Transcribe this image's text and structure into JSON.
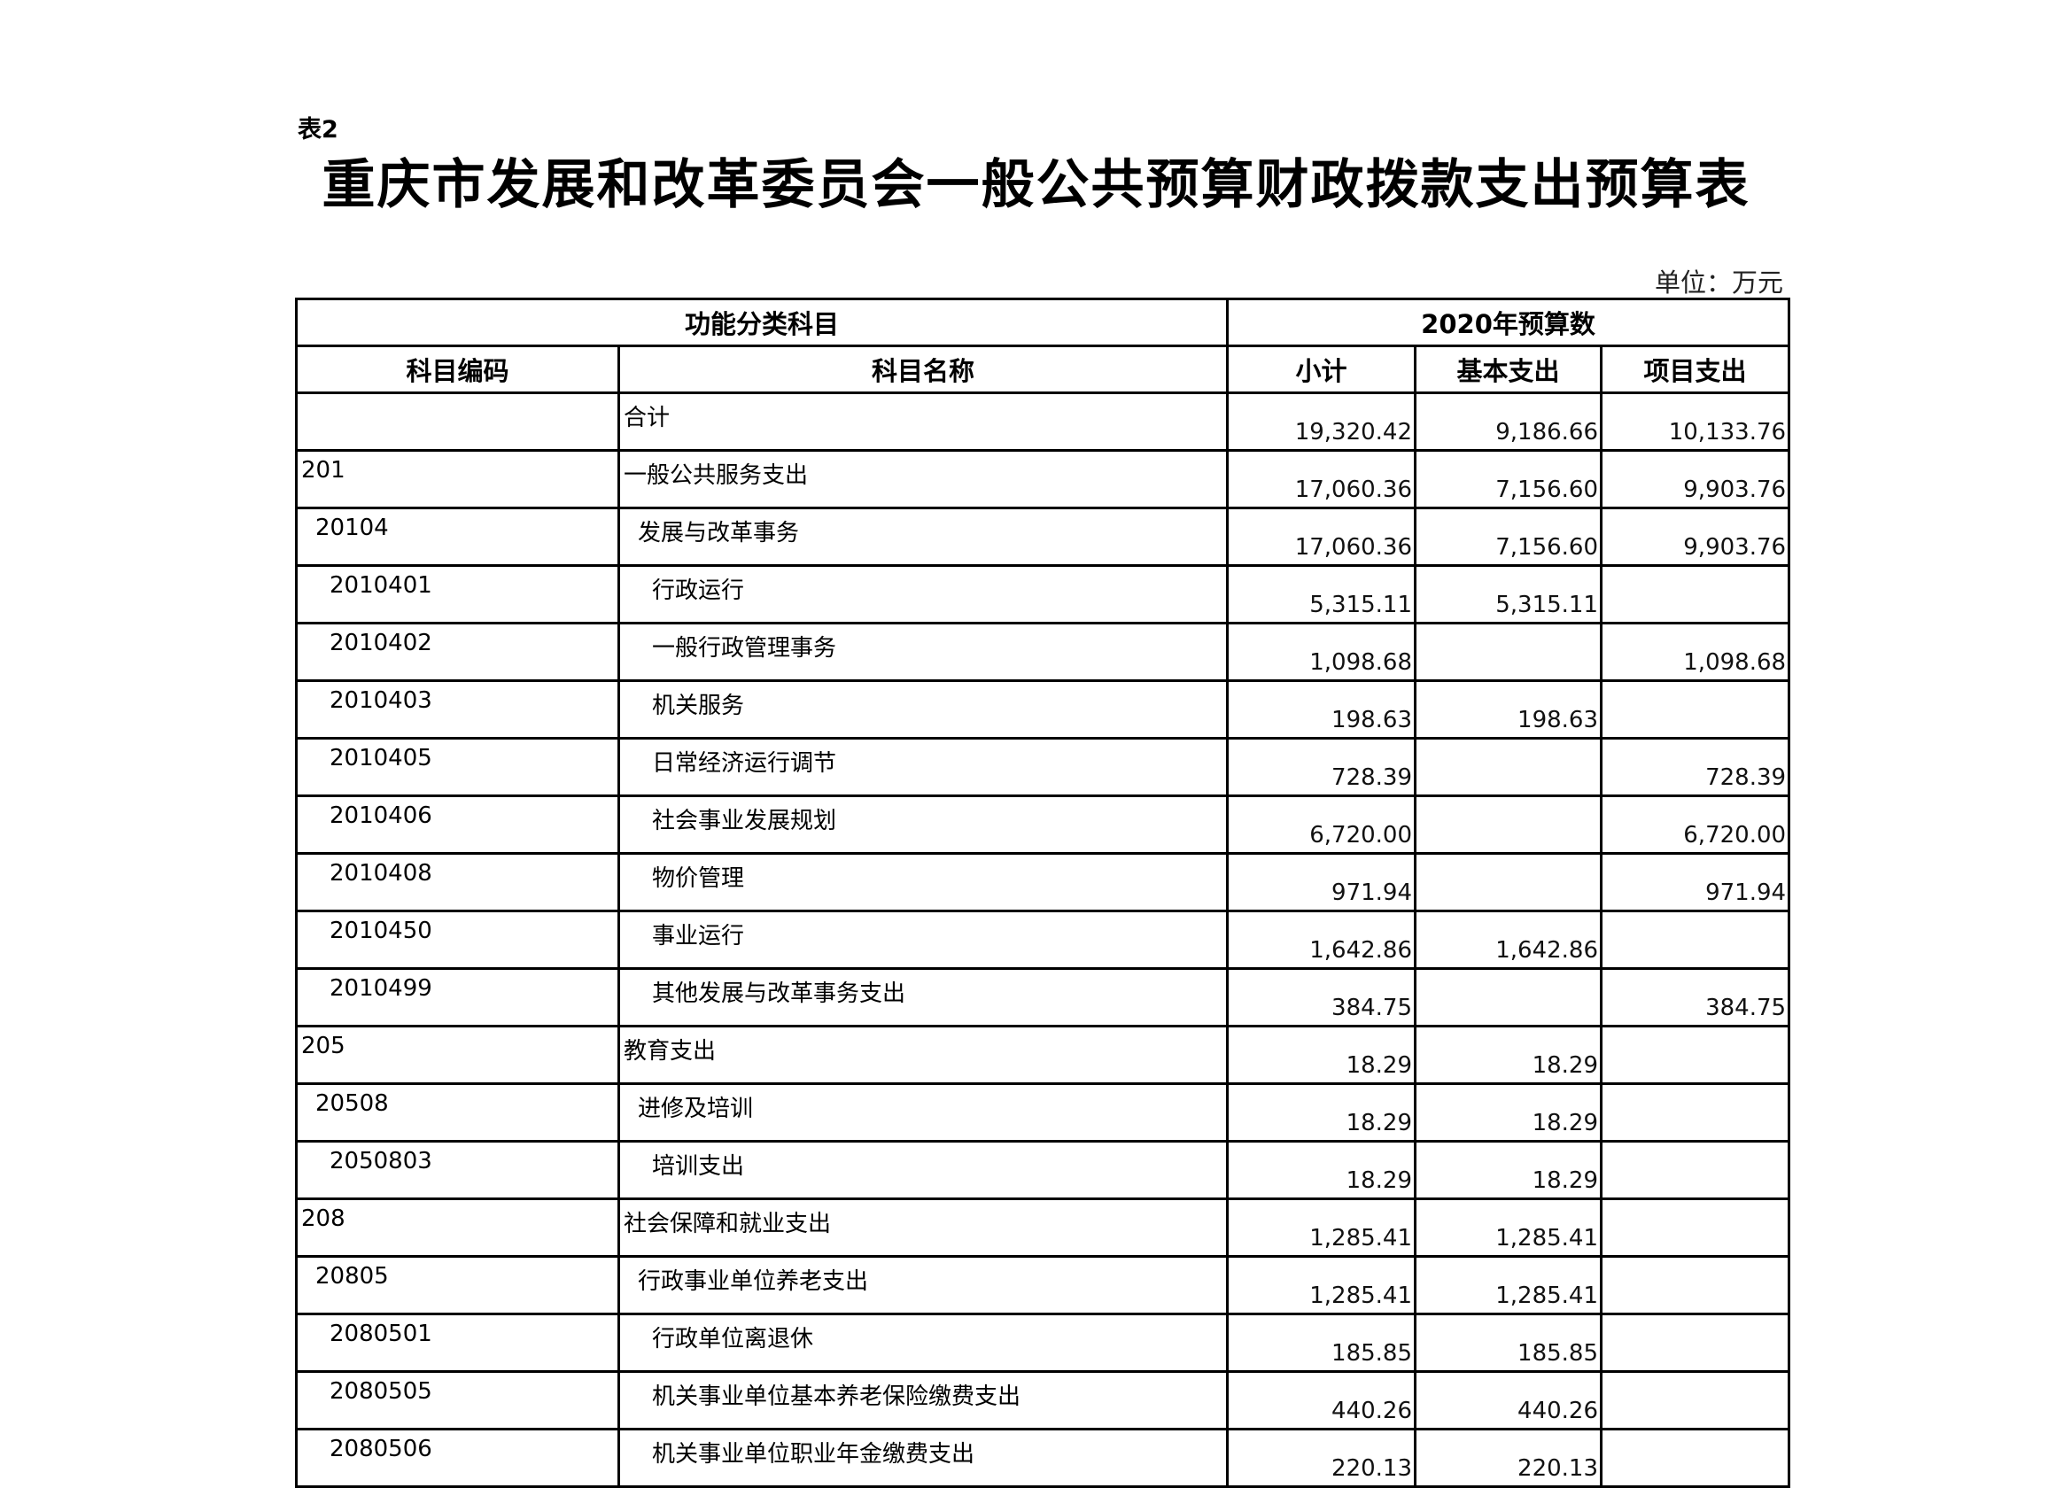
{
  "table_label": "表2",
  "title": "重庆市发展和改革委员会一般公共预算财政拨款支出预算表",
  "unit": "单位：万元",
  "headers": {
    "group_left": "功能分类科目",
    "group_right": "2020年预算数",
    "code": "科目编码",
    "name": "科目名称",
    "subtotal": "小计",
    "basic": "基本支出",
    "project": "项目支出"
  },
  "rows": [
    {
      "code": "",
      "name": "合计",
      "subtotal": "19,320.42",
      "basic": "9,186.66",
      "project": "10,133.76",
      "level": 1
    },
    {
      "code": "201",
      "name": "一般公共服务支出",
      "subtotal": "17,060.36",
      "basic": "7,156.60",
      "project": "9,903.76",
      "level": 1
    },
    {
      "code": "20104",
      "name": "发展与改革事务",
      "subtotal": "17,060.36",
      "basic": "7,156.60",
      "project": "9,903.76",
      "level": 2
    },
    {
      "code": "2010401",
      "name": "行政运行",
      "subtotal": "5,315.11",
      "basic": "5,315.11",
      "project": "",
      "level": 3
    },
    {
      "code": "2010402",
      "name": "一般行政管理事务",
      "subtotal": "1,098.68",
      "basic": "",
      "project": "1,098.68",
      "level": 3
    },
    {
      "code": "2010403",
      "name": "机关服务",
      "subtotal": "198.63",
      "basic": "198.63",
      "project": "",
      "level": 3
    },
    {
      "code": "2010405",
      "name": "日常经济运行调节",
      "subtotal": "728.39",
      "basic": "",
      "project": "728.39",
      "level": 3
    },
    {
      "code": "2010406",
      "name": "社会事业发展规划",
      "subtotal": "6,720.00",
      "basic": "",
      "project": "6,720.00",
      "level": 3
    },
    {
      "code": "2010408",
      "name": "物价管理",
      "subtotal": "971.94",
      "basic": "",
      "project": "971.94",
      "level": 3
    },
    {
      "code": "2010450",
      "name": "事业运行",
      "subtotal": "1,642.86",
      "basic": "1,642.86",
      "project": "",
      "level": 3
    },
    {
      "code": "2010499",
      "name": "其他发展与改革事务支出",
      "subtotal": "384.75",
      "basic": "",
      "project": "384.75",
      "level": 3
    },
    {
      "code": "205",
      "name": "教育支出",
      "subtotal": "18.29",
      "basic": "18.29",
      "project": "",
      "level": 1
    },
    {
      "code": "20508",
      "name": "进修及培训",
      "subtotal": "18.29",
      "basic": "18.29",
      "project": "",
      "level": 2
    },
    {
      "code": "2050803",
      "name": "培训支出",
      "subtotal": "18.29",
      "basic": "18.29",
      "project": "",
      "level": 3
    },
    {
      "code": "208",
      "name": "社会保障和就业支出",
      "subtotal": "1,285.41",
      "basic": "1,285.41",
      "project": "",
      "level": 1
    },
    {
      "code": "20805",
      "name": "行政事业单位养老支出",
      "subtotal": "1,285.41",
      "basic": "1,285.41",
      "project": "",
      "level": 2
    },
    {
      "code": "2080501",
      "name": "行政单位离退休",
      "subtotal": "185.85",
      "basic": "185.85",
      "project": "",
      "level": 3
    },
    {
      "code": "2080505",
      "name": "机关事业单位基本养老保险缴费支出",
      "subtotal": "440.26",
      "basic": "440.26",
      "project": "",
      "level": 3
    },
    {
      "code": "2080506",
      "name": "机关事业单位职业年金缴费支出",
      "subtotal": "220.13",
      "basic": "220.13",
      "project": "",
      "level": 3
    }
  ]
}
